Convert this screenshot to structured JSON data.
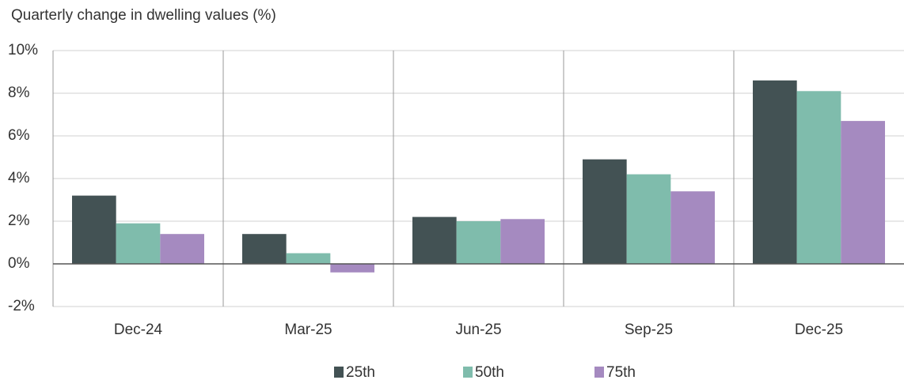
{
  "chart_data": {
    "type": "bar",
    "title": "Quarterly change in dwelling values (%)",
    "categories": [
      "Dec-24",
      "Mar-25",
      "Jun-25",
      "Sep-25",
      "Dec-25"
    ],
    "series": [
      {
        "name": "25th",
        "color": "#435254",
        "values": [
          3.2,
          1.4,
          2.2,
          4.9,
          8.6
        ]
      },
      {
        "name": "50th",
        "color": "#7fbcac",
        "values": [
          1.9,
          0.5,
          2.0,
          4.2,
          8.1
        ]
      },
      {
        "name": "75th",
        "color": "#a58ac0",
        "values": [
          1.4,
          -0.4,
          2.1,
          3.4,
          6.7
        ]
      }
    ],
    "ylim": [
      -2,
      10
    ],
    "yticks": [
      {
        "value": -2,
        "label": "-2%"
      },
      {
        "value": 0,
        "label": "0%"
      },
      {
        "value": 2,
        "label": "2%"
      },
      {
        "value": 4,
        "label": "4%"
      },
      {
        "value": 6,
        "label": "6%"
      },
      {
        "value": 8,
        "label": "8%"
      },
      {
        "value": 10,
        "label": "10%"
      }
    ],
    "grid": true,
    "legend": "bottom"
  }
}
